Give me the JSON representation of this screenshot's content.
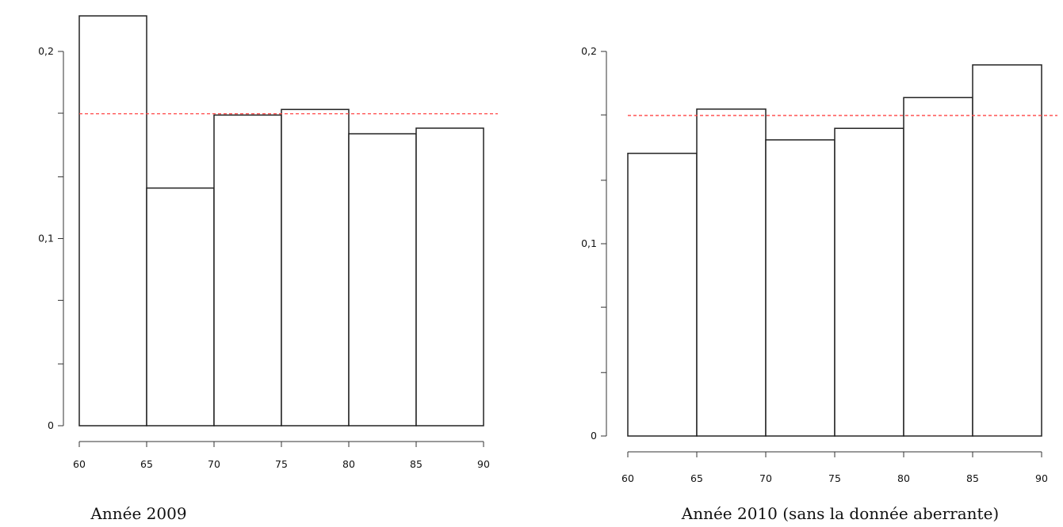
{
  "chart_data": [
    {
      "type": "bar",
      "caption": "Année 2009",
      "bin_edges": [
        60,
        65,
        70,
        75,
        80,
        85,
        90
      ],
      "values": [
        0.219,
        0.127,
        0.166,
        0.169,
        0.156,
        0.159
      ],
      "reference_line": {
        "value": 0.1667,
        "color": "#ff4444",
        "style": "dashed"
      },
      "xlim": [
        60,
        90
      ],
      "ylim": [
        0,
        0.22
      ],
      "x_ticks": [
        "60",
        "65",
        "70",
        "75",
        "80",
        "85",
        "90"
      ],
      "y_ticks": [
        {
          "value": 0,
          "label": "0"
        },
        {
          "value": 0.033,
          "label": ""
        },
        {
          "value": 0.067,
          "label": ""
        },
        {
          "value": 0.1,
          "label": "0,1"
        },
        {
          "value": 0.133,
          "label": ""
        },
        {
          "value": 0.167,
          "label": ""
        },
        {
          "value": 0.2,
          "label": "0,2"
        }
      ],
      "bar_fill": "#ffffff",
      "bar_stroke": "#222222"
    },
    {
      "type": "bar",
      "caption": "Année 2010 (sans la donnée aberrante)",
      "bin_edges": [
        60,
        65,
        70,
        75,
        80,
        85,
        90
      ],
      "values": [
        0.147,
        0.17,
        0.154,
        0.16,
        0.176,
        0.193
      ],
      "reference_line": {
        "value": 0.1667,
        "color": "#ff4444",
        "style": "dashed"
      },
      "xlim": [
        60,
        90
      ],
      "ylim": [
        0,
        0.2
      ],
      "x_ticks": [
        "60",
        "65",
        "70",
        "75",
        "80",
        "85",
        "90"
      ],
      "y_ticks": [
        {
          "value": 0,
          "label": "0"
        },
        {
          "value": 0.033,
          "label": ""
        },
        {
          "value": 0.067,
          "label": ""
        },
        {
          "value": 0.1,
          "label": "0,1"
        },
        {
          "value": 0.133,
          "label": ""
        },
        {
          "value": 0.167,
          "label": ""
        },
        {
          "value": 0.2,
          "label": "0,2"
        }
      ],
      "bar_fill": "#ffffff",
      "bar_stroke": "#222222"
    }
  ]
}
